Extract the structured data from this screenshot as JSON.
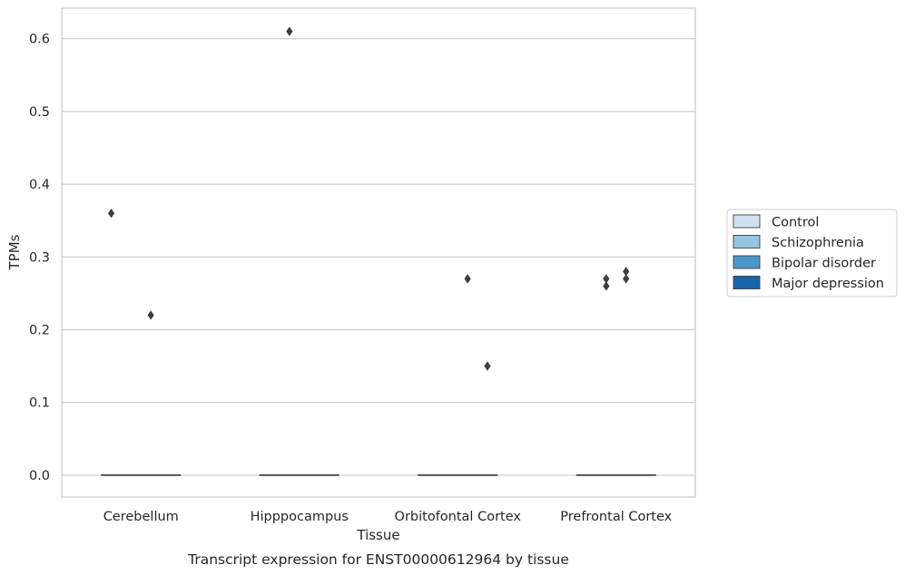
{
  "chart_data": {
    "type": "box",
    "title": "",
    "caption": "Transcript expression for ENST00000612964 by tissue",
    "xlabel": "Tissue",
    "ylabel": "TPMs",
    "ylim": [
      -0.03,
      0.642
    ],
    "yticks": [
      0.0,
      0.1,
      0.2,
      0.3,
      0.4,
      0.5,
      0.6
    ],
    "ytick_labels": [
      "0.0",
      "0.1",
      "0.2",
      "0.3",
      "0.4",
      "0.5",
      "0.6"
    ],
    "grid": true,
    "legend_position": "right",
    "categories": [
      "Cerebellum",
      "Hipppocampus",
      "Orbitofontal Cortex",
      "Prefrontal Cortex"
    ],
    "series": [
      {
        "name": "Control",
        "color": "#d0e1f2",
        "boxes": [
          {
            "min": 0,
            "q1": 0,
            "median": 0,
            "q3": 0,
            "max": 0,
            "outliers": [
              0.36
            ]
          },
          {
            "min": 0,
            "q1": 0,
            "median": 0,
            "q3": 0,
            "max": 0,
            "outliers": []
          },
          {
            "min": 0,
            "q1": 0,
            "median": 0,
            "q3": 0,
            "max": 0,
            "outliers": []
          },
          {
            "min": 0,
            "q1": 0,
            "median": 0,
            "q3": 0,
            "max": 0,
            "outliers": []
          }
        ]
      },
      {
        "name": "Schizophrenia",
        "color": "#94c4df",
        "boxes": [
          {
            "min": 0,
            "q1": 0,
            "median": 0,
            "q3": 0,
            "max": 0,
            "outliers": []
          },
          {
            "min": 0,
            "q1": 0,
            "median": 0,
            "q3": 0,
            "max": 0,
            "outliers": [
              0.61
            ]
          },
          {
            "min": 0,
            "q1": 0,
            "median": 0,
            "q3": 0,
            "max": 0,
            "outliers": []
          },
          {
            "min": 0,
            "q1": 0,
            "median": 0,
            "q3": 0,
            "max": 0,
            "outliers": [
              0.27,
              0.26
            ]
          }
        ]
      },
      {
        "name": "Bipolar disorder",
        "color": "#4a98c9",
        "boxes": [
          {
            "min": 0,
            "q1": 0,
            "median": 0,
            "q3": 0,
            "max": 0,
            "outliers": [
              0.22
            ]
          },
          {
            "min": 0,
            "q1": 0,
            "median": 0,
            "q3": 0,
            "max": 0,
            "outliers": []
          },
          {
            "min": 0,
            "q1": 0,
            "median": 0,
            "q3": 0,
            "max": 0,
            "outliers": [
              0.27
            ]
          },
          {
            "min": 0,
            "q1": 0,
            "median": 0,
            "q3": 0,
            "max": 0,
            "outliers": [
              0.28,
              0.27
            ]
          }
        ]
      },
      {
        "name": "Major depression",
        "color": "#1764ab",
        "boxes": [
          {
            "min": 0,
            "q1": 0,
            "median": 0,
            "q3": 0,
            "max": 0,
            "outliers": []
          },
          {
            "min": 0,
            "q1": 0,
            "median": 0,
            "q3": 0,
            "max": 0,
            "outliers": []
          },
          {
            "min": 0,
            "q1": 0,
            "median": 0,
            "q3": 0,
            "max": 0,
            "outliers": [
              0.15
            ]
          },
          {
            "min": 0,
            "q1": 0,
            "median": 0,
            "q3": 0,
            "max": 0,
            "outliers": []
          }
        ]
      }
    ],
    "colors": {
      "axes_edge": "#cccccc",
      "grid": "#cccccc",
      "marks": "#3d3d3d",
      "text": "#262626"
    }
  }
}
